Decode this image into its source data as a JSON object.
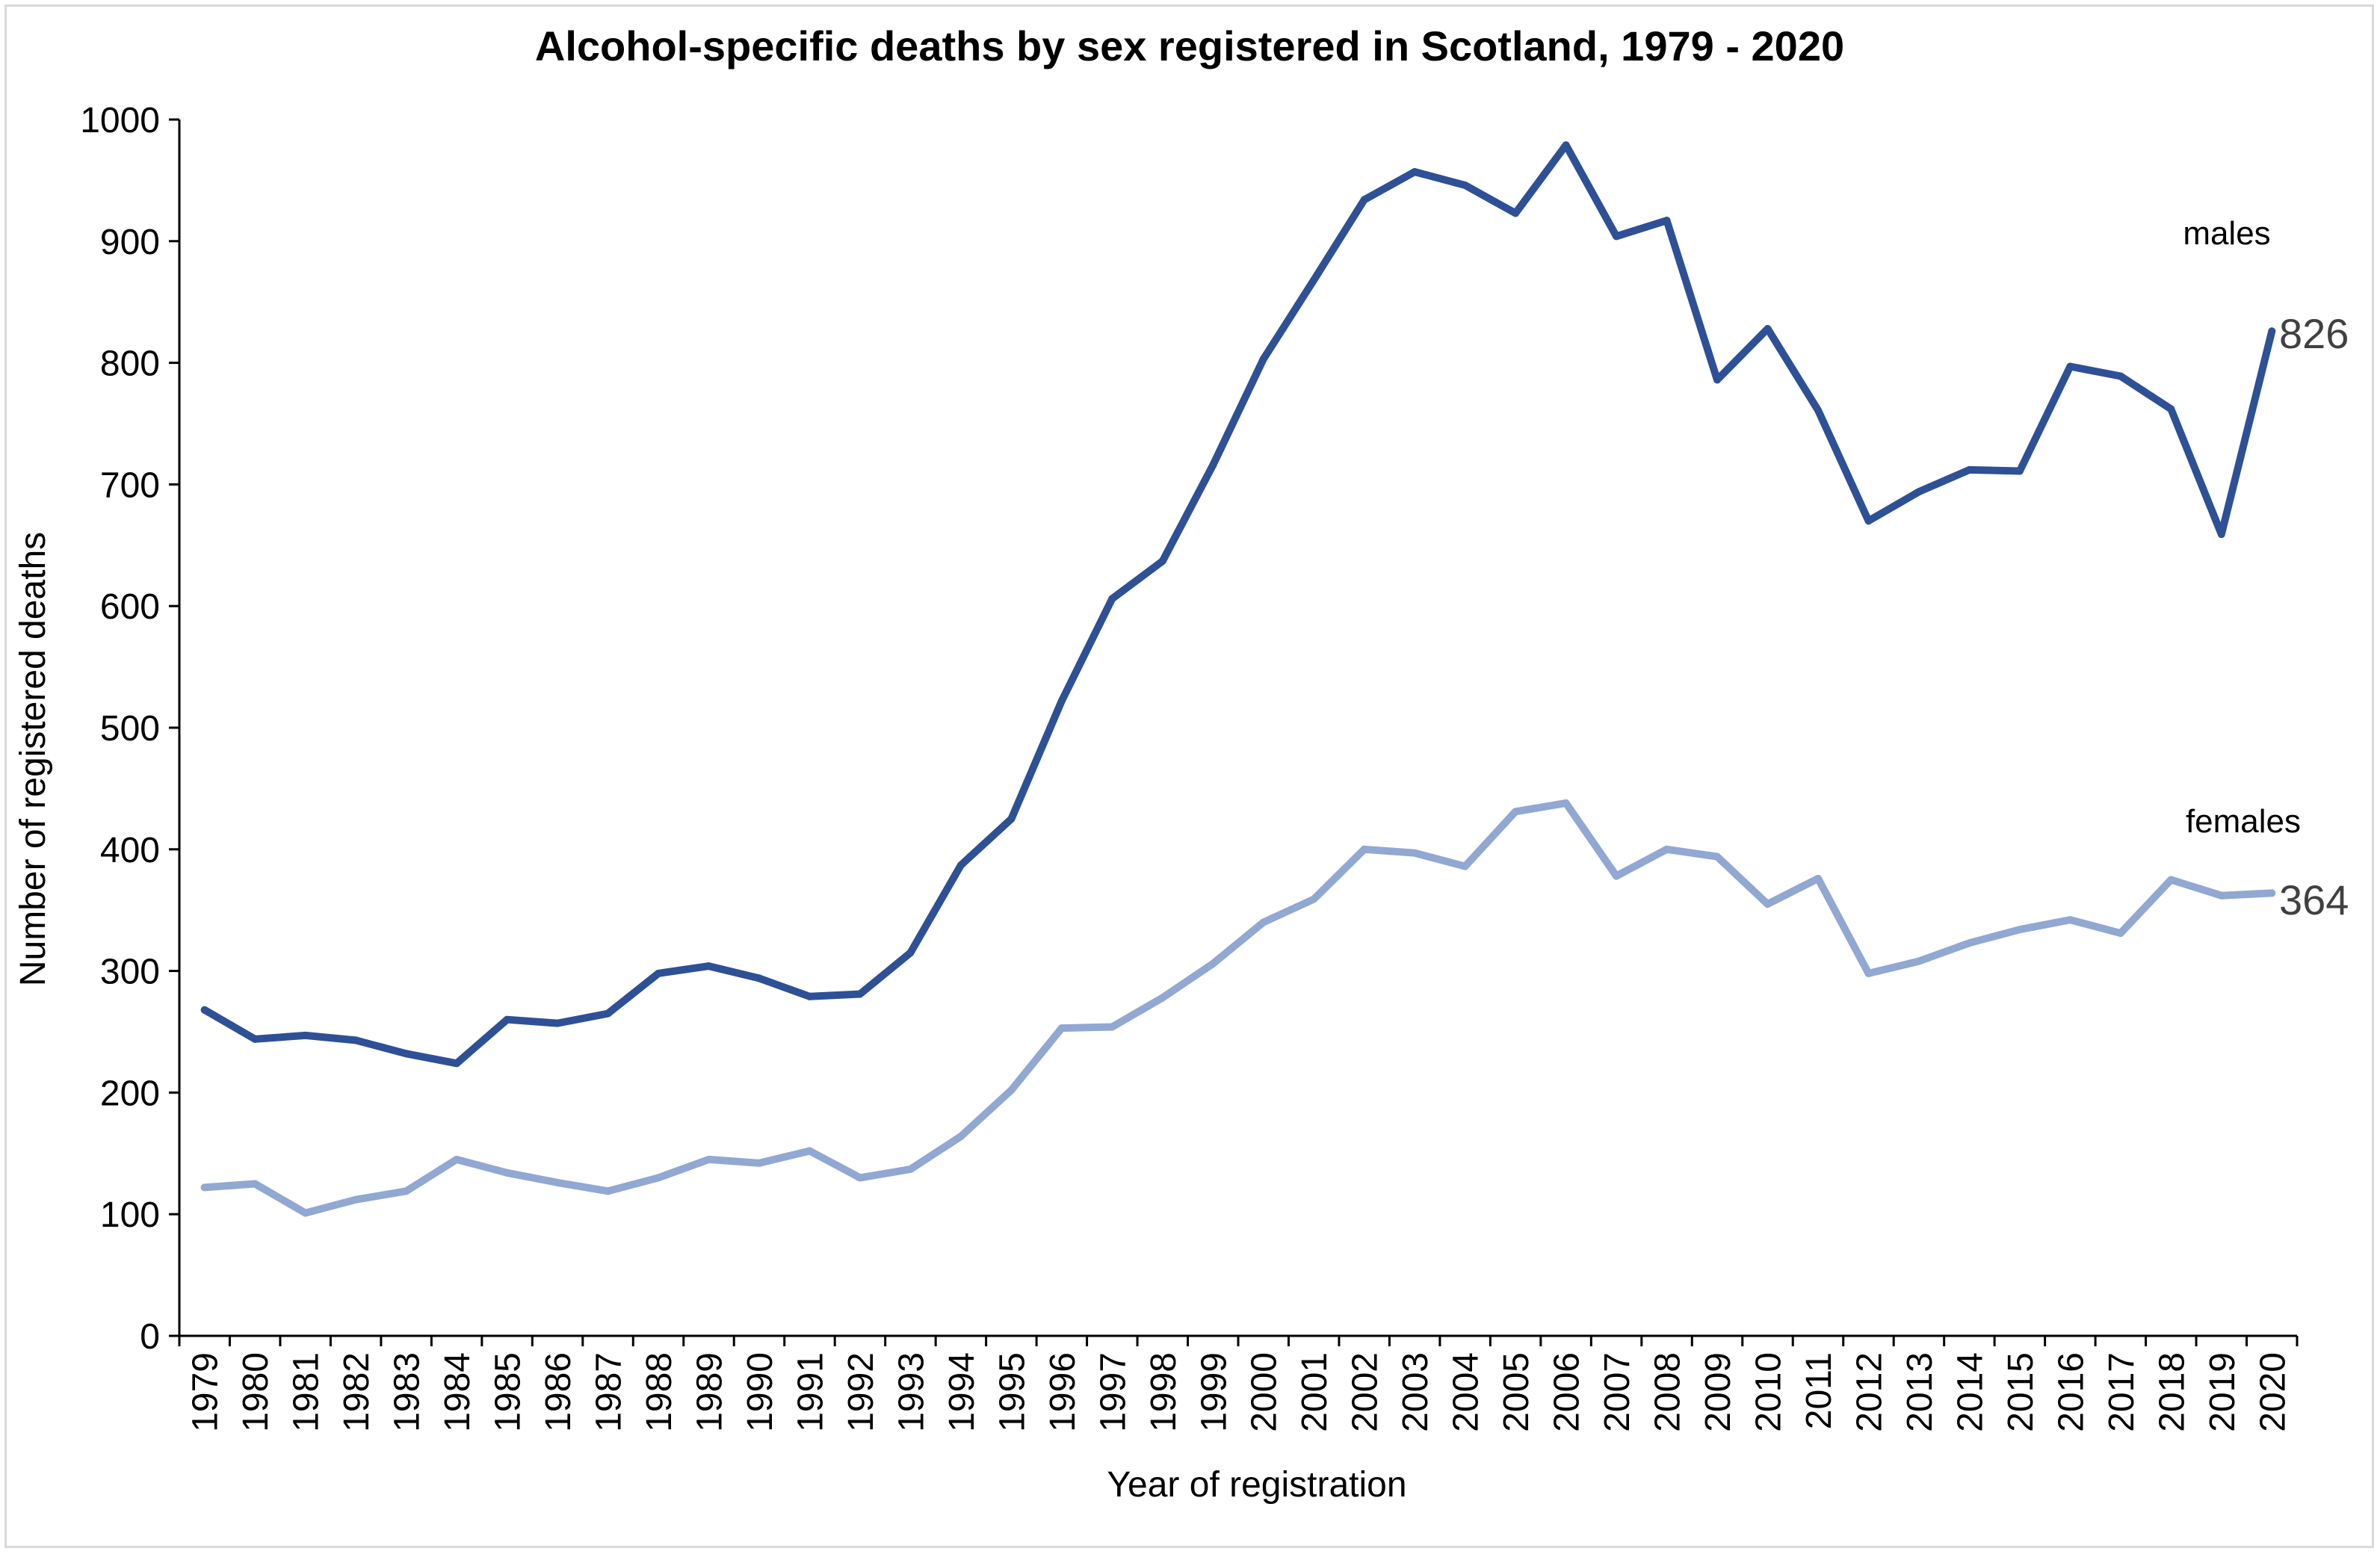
{
  "chart_data": {
    "type": "line",
    "title": "Alcohol-specific deaths by sex registered in Scotland, 1979 - 2020",
    "xlabel": "Year of registration",
    "ylabel": "Number of registered deaths",
    "ylim": [
      0,
      1000
    ],
    "yticks": [
      0,
      100,
      200,
      300,
      400,
      500,
      600,
      700,
      800,
      900,
      1000
    ],
    "grid": false,
    "legend": "none",
    "categories": [
      "1979",
      "1980",
      "1981",
      "1982",
      "1983",
      "1984",
      "1985",
      "1986",
      "1987",
      "1988",
      "1989",
      "1990",
      "1991",
      "1992",
      "1993",
      "1994",
      "1995",
      "1996",
      "1997",
      "1998",
      "1999",
      "2000",
      "2001",
      "2002",
      "2003",
      "2004",
      "2005",
      "2006",
      "2007",
      "2008",
      "2009",
      "2010",
      "2011",
      "2012",
      "2013",
      "2014",
      "2015",
      "2016",
      "2017",
      "2018",
      "2019",
      "2020"
    ],
    "series": [
      {
        "name": "males",
        "color": "#2e5096",
        "end_label": "826",
        "values": [
          268,
          244,
          247,
          243,
          232,
          224,
          260,
          257,
          265,
          298,
          304,
          294,
          279,
          281,
          315,
          387,
          425,
          522,
          606,
          637,
          716,
          803,
          868,
          934,
          957,
          946,
          923,
          979,
          904,
          917,
          786,
          828,
          761,
          670,
          694,
          712,
          711,
          797,
          789,
          762,
          659,
          826
        ]
      },
      {
        "name": "females",
        "color": "#90a8d2",
        "end_label": "364",
        "values": [
          122,
          125,
          101,
          112,
          119,
          145,
          134,
          126,
          119,
          130,
          145,
          142,
          152,
          130,
          137,
          164,
          202,
          253,
          254,
          278,
          306,
          340,
          359,
          400,
          397,
          386,
          431,
          438,
          378,
          400,
          394,
          355,
          376,
          298,
          308,
          323,
          334,
          342,
          331,
          375,
          362,
          364
        ]
      }
    ]
  }
}
